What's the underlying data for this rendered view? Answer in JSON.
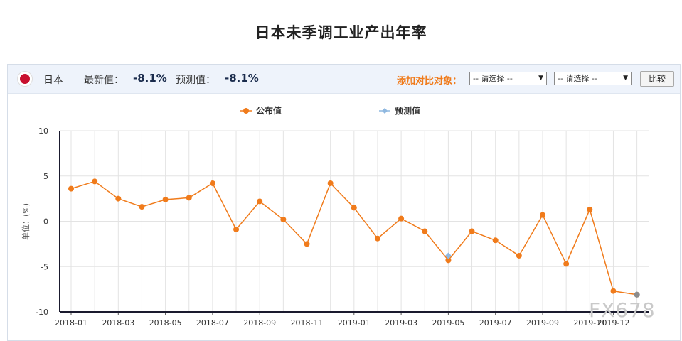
{
  "page": {
    "title": "日本未季调工业产出年率"
  },
  "header": {
    "country": "日本",
    "latest_label": "最新值：",
    "latest_value": "-8.1%",
    "forecast_label": "预测值：",
    "forecast_value": "-8.1%",
    "compare_label": "添加对比对象：",
    "select1_value": "-- 请选择 --",
    "select2_value": "-- 请选择 --",
    "compare_button": "比较",
    "flag_color": "#c8102e"
  },
  "chart_data": {
    "type": "line",
    "ylabel": "单位：(%)",
    "ylim": [
      -10,
      10
    ],
    "yticks": [
      10,
      5,
      0,
      -5,
      -10
    ],
    "grid": true,
    "legend_placement": "top-center",
    "xtick_labels": [
      "2018-01",
      "2018-03",
      "2018-05",
      "2018-07",
      "2018-09",
      "2018-11",
      "2019-01",
      "2019-03",
      "2019-05",
      "2019-07",
      "2019-09",
      "2019-11",
      "2019-12"
    ],
    "x": [
      "2018-01",
      "2018-02",
      "2018-03",
      "2018-04",
      "2018-05",
      "2018-06",
      "2018-07",
      "2018-08",
      "2018-09",
      "2018-10",
      "2018-11",
      "2018-12",
      "2019-01",
      "2019-02",
      "2019-03",
      "2019-04",
      "2019-05",
      "2019-06",
      "2019-07",
      "2019-08",
      "2019-09",
      "2019-10",
      "2019-11",
      "2019-12",
      "2020-01"
    ],
    "series": [
      {
        "name": "公布值",
        "color": "#f07b1b",
        "values": [
          3.6,
          4.4,
          2.5,
          1.6,
          2.4,
          2.6,
          4.2,
          -0.9,
          2.2,
          0.2,
          -2.5,
          4.2,
          1.5,
          -1.9,
          0.3,
          -1.1,
          -4.3,
          -1.1,
          -2.1,
          -3.8,
          0.7,
          -4.7,
          1.3,
          -7.7,
          -8.1
        ]
      },
      {
        "name": "预测值",
        "color": "#8fb8e0",
        "values": [
          null,
          null,
          null,
          null,
          null,
          null,
          null,
          null,
          null,
          null,
          null,
          null,
          null,
          null,
          null,
          null,
          -3.8,
          null,
          null,
          null,
          null,
          null,
          null,
          null,
          -8.1
        ]
      }
    ]
  },
  "watermark": "FX678"
}
